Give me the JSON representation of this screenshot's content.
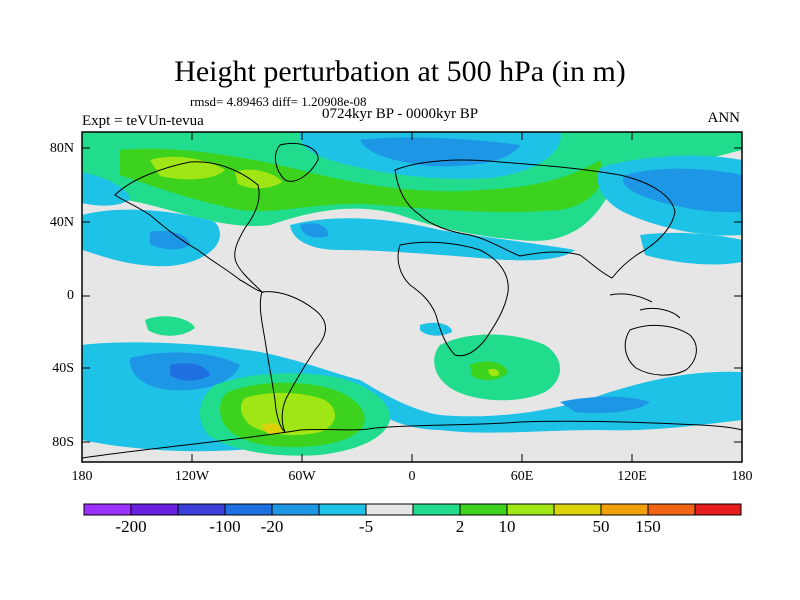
{
  "title": "Height perturbation at 500 hPa (in m)",
  "stats": "rmsd= 4.89463 diff= 1.20908e-08",
  "period": "0724kyr BP - 0000kyr BP",
  "experiment": "Expt = teVUn-tevua",
  "season": "ANN",
  "y_ticks": [
    "80N",
    "40N",
    "0",
    "40S",
    "80S"
  ],
  "x_ticks": [
    "180",
    "120W",
    "60W",
    "0",
    "60E",
    "120E",
    "180"
  ],
  "colorbar": {
    "labels": [
      "-200",
      "-100",
      "-20",
      "-5",
      "2",
      "10",
      "50",
      "150"
    ],
    "colors": [
      "#9b30ff",
      "#6a1fe0",
      "#3a3fd8",
      "#1e6fe0",
      "#1e96e6",
      "#1ec2e6",
      "#e6e6e6",
      "#20dc8c",
      "#3cd21e",
      "#a0e614",
      "#dcd20a",
      "#f0a00a",
      "#f06414",
      "#e61e1e"
    ]
  },
  "map_colors": {
    "zero": "#e6e6e6",
    "neg_light": "#1ec2e6",
    "neg_mid": "#1e96e6",
    "neg_strong": "#1e6fe0",
    "pos_light": "#20dc8c",
    "pos_mid": "#3cd21e",
    "pos_strong": "#a0e614",
    "pos_max": "#dcd20a"
  }
}
